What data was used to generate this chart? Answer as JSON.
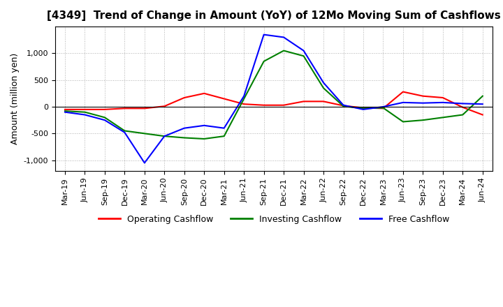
{
  "title": "[4349]  Trend of Change in Amount (YoY) of 12Mo Moving Sum of Cashflows",
  "ylabel": "Amount (million yen)",
  "ylim": [
    -1200,
    1500
  ],
  "yticks": [
    -1000,
    -500,
    0,
    500,
    1000
  ],
  "x_labels": [
    "Mar-19",
    "Jun-19",
    "Sep-19",
    "Dec-19",
    "Mar-20",
    "Jun-20",
    "Sep-20",
    "Dec-20",
    "Mar-21",
    "Jun-21",
    "Sep-21",
    "Dec-21",
    "Mar-22",
    "Jun-22",
    "Sep-22",
    "Dec-22",
    "Mar-23",
    "Jun-23",
    "Sep-23",
    "Dec-23",
    "Mar-24",
    "Jun-24"
  ],
  "operating": [
    -50,
    -50,
    -50,
    -30,
    -30,
    10,
    170,
    250,
    150,
    50,
    30,
    30,
    100,
    100,
    20,
    -20,
    -30,
    280,
    200,
    170,
    -10,
    -150
  ],
  "investing": [
    -80,
    -100,
    -200,
    -450,
    -500,
    -550,
    -580,
    -600,
    -550,
    150,
    850,
    1050,
    950,
    350,
    10,
    -30,
    -20,
    -280,
    -250,
    -200,
    -150,
    200
  ],
  "free": [
    -100,
    -150,
    -250,
    -480,
    -1050,
    -550,
    -400,
    -350,
    -400,
    200,
    1350,
    1300,
    1050,
    450,
    30,
    -50,
    0,
    80,
    70,
    80,
    60,
    50
  ],
  "operating_color": "#ff0000",
  "investing_color": "#008000",
  "free_color": "#0000ff",
  "background_color": "#ffffff",
  "grid_color": "#b0b0b0",
  "title_fontsize": 11,
  "legend_fontsize": 9,
  "tick_fontsize": 8,
  "ylabel_fontsize": 9
}
